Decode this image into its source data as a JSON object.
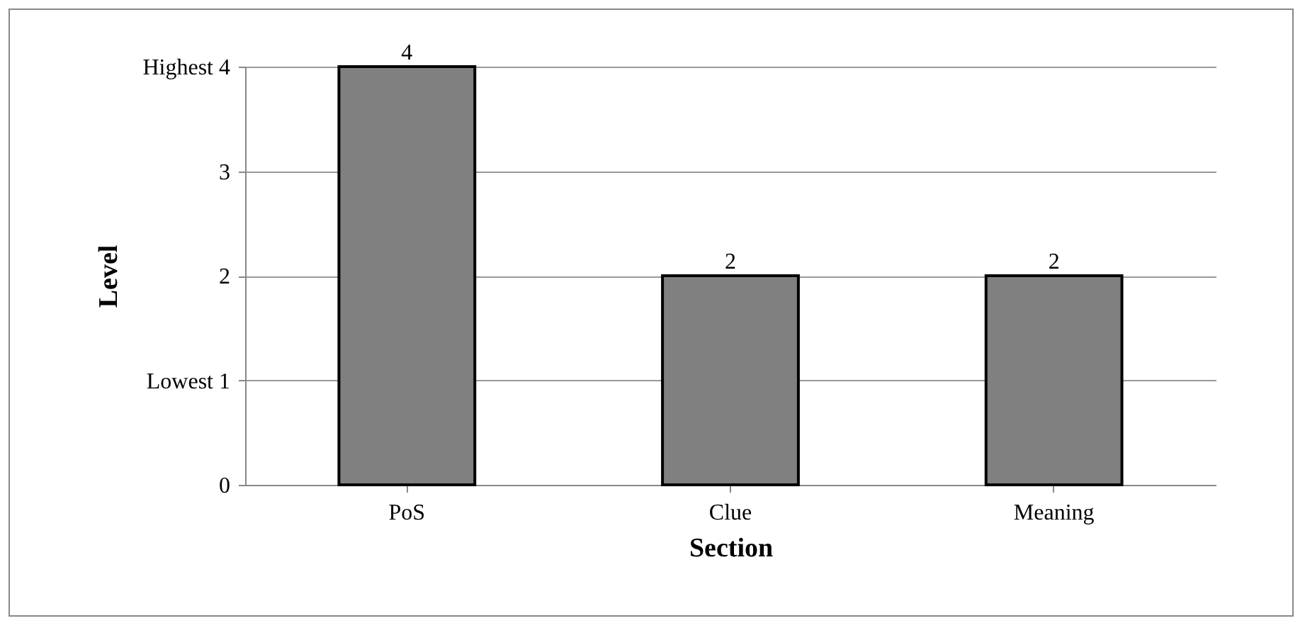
{
  "chart_data": {
    "type": "bar",
    "xlabel": "Section",
    "ylabel": "Level",
    "categories": [
      "PoS",
      "Clue",
      "Meaning"
    ],
    "values": [
      4,
      2,
      2
    ],
    "color": "#808080",
    "ylim": [
      0,
      4
    ],
    "yticks": [
      0,
      {
        "value": 1,
        "label": "Lowest 1"
      },
      2,
      3,
      {
        "value": 4,
        "label": "Highest 4"
      }
    ],
    "grid": "y",
    "data_labels": true
  }
}
